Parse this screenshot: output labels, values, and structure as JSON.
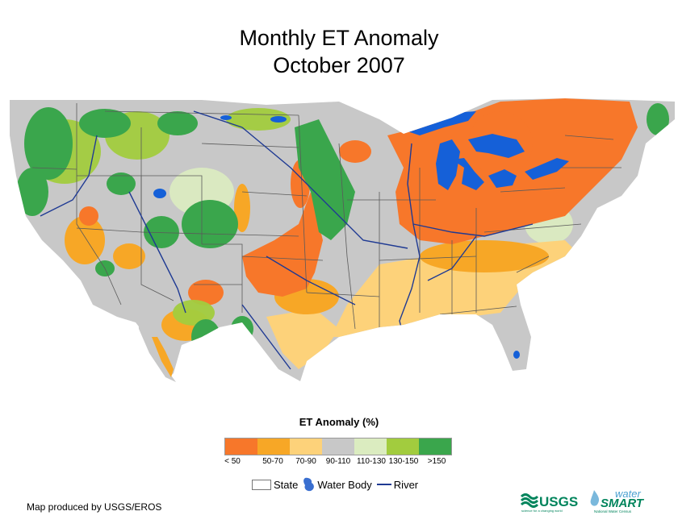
{
  "title": {
    "line1": "Monthly ET Anomaly",
    "line2": "October 2007"
  },
  "legend": {
    "title": "ET Anomaly (%)",
    "classes": [
      {
        "label": "< 50",
        "color": "#f7772a"
      },
      {
        "label": "50-70",
        "color": "#f7a726"
      },
      {
        "label": "70-90",
        "color": "#fdd27a"
      },
      {
        "label": "90-110",
        "color": "#c8c8c8"
      },
      {
        "label": "110-130",
        "color": "#dbecc0"
      },
      {
        "label": "130-150",
        "color": "#a2cc3e"
      },
      {
        "label": ">150",
        "color": "#3aa64c"
      }
    ]
  },
  "key": {
    "state": "State",
    "water_body": "Water Body",
    "river": "River"
  },
  "credit": "Map produced by USGS/EROS",
  "logos": {
    "usgs": "USGS",
    "usgs_tagline": "science for a changing world",
    "watersmart_top": "water",
    "watersmart_bottom": "SMART",
    "watersmart_tagline": "National Water Census"
  },
  "colors": {
    "water": "#1560d8",
    "river": "#1f3a93",
    "state_line": "#5a5a5a"
  }
}
